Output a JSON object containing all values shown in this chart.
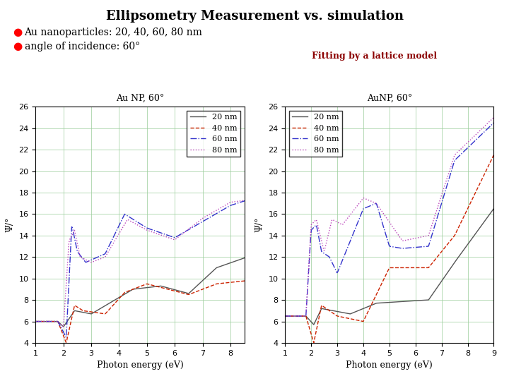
{
  "title": "Ellipsometry Measurement vs. simulation",
  "bullet1": "Au nanoparticles: 20, 40, 60, 80 nm",
  "bullet2": "angle of incidence: 60°",
  "fitting_label": "Fitting by a lattice model",
  "left_plot_title": "Au NP, 60°",
  "right_plot_title": "AuNP, 60°",
  "xlabel": "Photon energy (eV)",
  "ylabel": "Ψ/°",
  "ylim": [
    4,
    26
  ],
  "xlim_left": [
    1,
    8.5
  ],
  "xlim_right": [
    1,
    9
  ],
  "yticks": [
    4,
    6,
    8,
    10,
    12,
    14,
    16,
    18,
    20,
    22,
    24,
    26
  ],
  "xticks_left": [
    1,
    2,
    3,
    4,
    5,
    6,
    7,
    8
  ],
  "xticks_right": [
    1,
    2,
    3,
    4,
    5,
    6,
    7,
    8,
    9
  ],
  "colors": {
    "nm20": "#555555",
    "nm40": "#cc2200",
    "nm60": "#3333cc",
    "nm80": "#bb44bb"
  },
  "background": "#ffffff",
  "grid_color": "#99cc99"
}
